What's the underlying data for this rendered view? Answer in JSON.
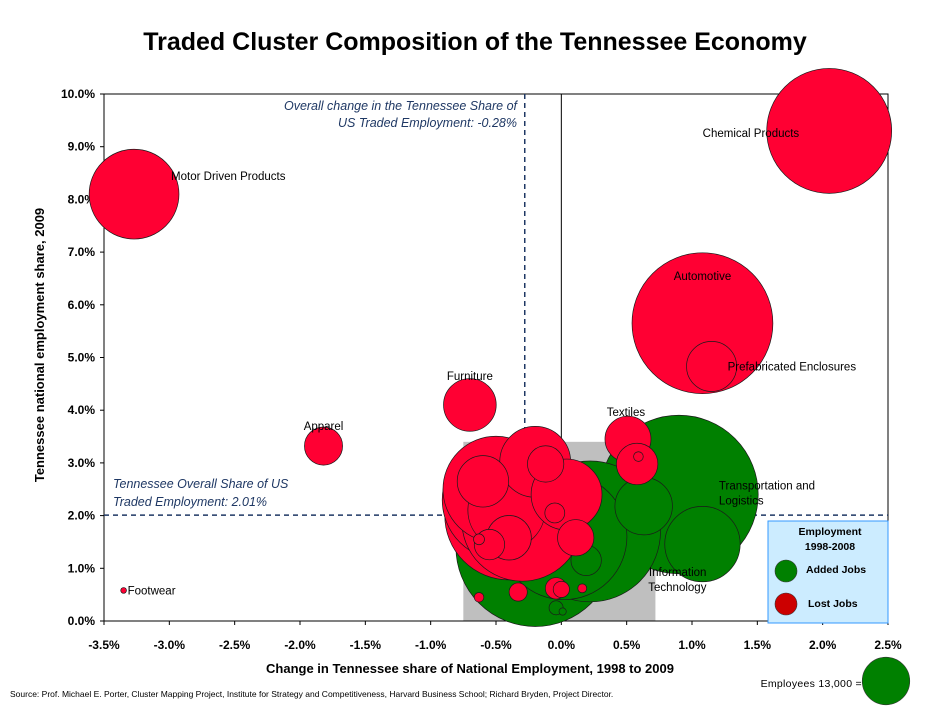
{
  "chart_data": {
    "type": "scatter",
    "title": "Traded Cluster Composition of the Tennessee Economy",
    "xlabel": "Change in Tennessee share of National Employment, 1998 to 2009",
    "ylabel": "Tennessee national employment share, 2009",
    "xlim": [
      -0.035,
      0.025
    ],
    "ylim": [
      0.0,
      0.1
    ],
    "x_ticks": [
      {
        "value": -0.035,
        "label": "-3.5%"
      },
      {
        "value": -0.03,
        "label": "-3.0%"
      },
      {
        "value": -0.025,
        "label": "-2.5%"
      },
      {
        "value": -0.02,
        "label": "-2.0%"
      },
      {
        "value": -0.015,
        "label": "-1.5%"
      },
      {
        "value": -0.01,
        "label": "-1.0%"
      },
      {
        "value": -0.005,
        "label": "-0.5%"
      },
      {
        "value": 0.0,
        "label": "0.0%"
      },
      {
        "value": 0.005,
        "label": "0.5%"
      },
      {
        "value": 0.01,
        "label": "1.0%"
      },
      {
        "value": 0.015,
        "label": "1.5%"
      },
      {
        "value": 0.02,
        "label": "2.0%"
      },
      {
        "value": 0.025,
        "label": "2.5%"
      }
    ],
    "y_ticks": [
      {
        "value": 0.0,
        "label": "0.0%"
      },
      {
        "value": 0.01,
        "label": "1.0%"
      },
      {
        "value": 0.02,
        "label": "2.0%"
      },
      {
        "value": 0.03,
        "label": "3.0%"
      },
      {
        "value": 0.04,
        "label": "4.0%"
      },
      {
        "value": 0.05,
        "label": "5.0%"
      },
      {
        "value": 0.06,
        "label": "6.0%"
      },
      {
        "value": 0.07,
        "label": "7.0%"
      },
      {
        "value": 0.08,
        "label": "8.0%"
      },
      {
        "value": 0.09,
        "label": "9.0%"
      },
      {
        "value": 0.1,
        "label": "10.0%"
      }
    ],
    "reference_lines": {
      "vertical": {
        "value": -0.0028,
        "label_lines": [
          "Overall change in the Tennessee Share of",
          "US Traded Employment: -0.28%"
        ]
      },
      "horizontal": {
        "value": 0.0201,
        "label_lines": [
          "Tennessee Overall Share of US",
          "Traded Employment: 2.01%"
        ]
      }
    },
    "zoom_box": {
      "x_range": [
        -0.0075,
        0.0072
      ],
      "y_range": [
        0.0,
        0.034
      ],
      "color": "#BFBFBF"
    },
    "colors": {
      "added": "#008000",
      "lost": "#FF0033",
      "reference": "#1F3864",
      "legend_bg": "#CCECFF",
      "legend_border": "#3399FF"
    },
    "series": [
      {
        "name": "Added Jobs",
        "points": [
          {
            "x": 0.009,
            "y": 0.024,
            "emp": 190000,
            "label": "Transportation and Logistics"
          },
          {
            "x": 0.0108,
            "y": 0.0146,
            "emp": 43000,
            "label": "Information Technology"
          },
          {
            "x": 0.0022,
            "y": 0.017,
            "emp": 150000,
            "label": ""
          },
          {
            "x": -0.002,
            "y": 0.014,
            "emp": 190000,
            "label": ""
          },
          {
            "x": 0.0002,
            "y": 0.016,
            "emp": 120000,
            "label": ""
          },
          {
            "x": 0.0063,
            "y": 0.0218,
            "emp": 25000,
            "label": ""
          },
          {
            "x": 0.0019,
            "y": 0.0115,
            "emp": 7000,
            "label": ""
          },
          {
            "x": -0.0004,
            "y": 0.0025,
            "emp": 1500,
            "label": ""
          },
          {
            "x": 0.0001,
            "y": 0.0018,
            "emp": 400,
            "label": ""
          }
        ]
      },
      {
        "name": "Lost Jobs",
        "points": [
          {
            "x": 0.0205,
            "y": 0.093,
            "emp": 118000,
            "label": "Chemical Products"
          },
          {
            "x": -0.0327,
            "y": 0.081,
            "emp": 61000,
            "label": "Motor Driven Products"
          },
          {
            "x": 0.0108,
            "y": 0.0565,
            "emp": 150000,
            "label": "Automotive"
          },
          {
            "x": 0.0115,
            "y": 0.0483,
            "emp": 19000,
            "label": "Prefabricated Enclosures"
          },
          {
            "x": -0.007,
            "y": 0.041,
            "emp": 21000,
            "label": "Furniture"
          },
          {
            "x": -0.0182,
            "y": 0.0332,
            "emp": 11000,
            "label": "Apparel"
          },
          {
            "x": 0.0051,
            "y": 0.0345,
            "emp": 16000,
            "label": "Textiles"
          },
          {
            "x": -0.0335,
            "y": 0.0058,
            "emp": 250,
            "label": "Footwear"
          },
          {
            "x": 0.0058,
            "y": 0.0298,
            "emp": 13000,
            "label": ""
          },
          {
            "x": 0.0059,
            "y": 0.0312,
            "emp": 700,
            "label": ""
          },
          {
            "x": -0.002,
            "y": 0.0302,
            "emp": 38000,
            "label": ""
          },
          {
            "x": -0.0012,
            "y": 0.0298,
            "emp": 10000,
            "label": ""
          },
          {
            "x": -0.005,
            "y": 0.025,
            "emp": 85000,
            "label": ""
          },
          {
            "x": -0.006,
            "y": 0.0265,
            "emp": 20000,
            "label": ""
          },
          {
            "x": -0.0045,
            "y": 0.023,
            "emp": 110000,
            "label": ""
          },
          {
            "x": -0.004,
            "y": 0.02,
            "emp": 125000,
            "label": ""
          },
          {
            "x": -0.003,
            "y": 0.019,
            "emp": 110000,
            "label": ""
          },
          {
            "x": -0.0042,
            "y": 0.021,
            "emp": 45000,
            "label": ""
          },
          {
            "x": 0.0004,
            "y": 0.024,
            "emp": 38000,
            "label": ""
          },
          {
            "x": -0.004,
            "y": 0.0158,
            "emp": 15000,
            "label": ""
          },
          {
            "x": -0.0055,
            "y": 0.0145,
            "emp": 7000,
            "label": ""
          },
          {
            "x": 0.0011,
            "y": 0.0158,
            "emp": 10000,
            "label": ""
          },
          {
            "x": -0.0005,
            "y": 0.0205,
            "emp": 3000,
            "label": ""
          },
          {
            "x": -0.0063,
            "y": 0.0155,
            "emp": 900,
            "label": ""
          },
          {
            "x": -0.0063,
            "y": 0.0045,
            "emp": 700,
            "label": ""
          },
          {
            "x": -0.0033,
            "y": 0.0055,
            "emp": 2500,
            "label": ""
          },
          {
            "x": -0.0004,
            "y": 0.0062,
            "emp": 3500,
            "label": ""
          },
          {
            "x": 0.0,
            "y": 0.006,
            "emp": 2000,
            "label": ""
          },
          {
            "x": 0.0016,
            "y": 0.0062,
            "emp": 600,
            "label": ""
          }
        ]
      }
    ],
    "legend": {
      "title": [
        "Employment",
        "1998-2008"
      ],
      "items": [
        "Added Jobs",
        "Lost Jobs"
      ],
      "scale_label": "Employees 13,000 =",
      "scale_value": 13000
    },
    "source": "Source: Prof. Michael E. Porter, Cluster Mapping Project, Institute for Strategy and Competitiveness, Harvard Business School; Richard Bryden, Project Director."
  }
}
